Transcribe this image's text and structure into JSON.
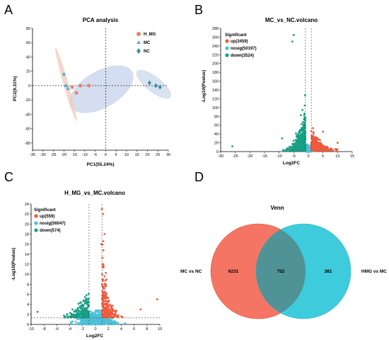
{
  "panels": {
    "A": {
      "letter": "A"
    },
    "B": {
      "letter": "B"
    },
    "C": {
      "letter": "C"
    },
    "D": {
      "letter": "D"
    }
  },
  "colors": {
    "up": "#f05a3c",
    "nosig": "#4ec0d9",
    "down": "#16a085",
    "hmg": "#e8836b",
    "mc": "#5aaedb",
    "nc": "#3f8f99",
    "hmg_ellipse": "#f2c9b7",
    "mc_ellipse": "#b9c6e6",
    "nc_ellipse": "#c7d6ea",
    "venn_left": "#f57564",
    "venn_right": "#3ecbdb",
    "venn_overlap": "#4f9397"
  },
  "chart_data": [
    {
      "type": "scatter",
      "title": "PCA analysis",
      "xlabel": "PC1(55.24%)",
      "ylabel": "PC2(9.31%)",
      "xlim": [
        -35,
        30
      ],
      "ylim": [
        -90,
        80
      ],
      "xticks": [
        -35,
        -30,
        -25,
        -20,
        -15,
        -10,
        -5,
        0,
        5,
        10,
        15,
        20,
        25,
        30
      ],
      "yticks": [
        -80,
        -60,
        -40,
        -20,
        0,
        20,
        40,
        60,
        80
      ],
      "legend_position": "top-right",
      "series": [
        {
          "name": "H_MG",
          "marker": "circle",
          "points": [
            [
              -16,
              -2
            ],
            [
              -12,
              0
            ],
            [
              -8,
              0
            ],
            [
              -14,
              -10
            ]
          ]
        },
        {
          "name": "MC",
          "marker": "triangle",
          "points": [
            [
              -20,
              16
            ],
            [
              -19,
              0
            ],
            [
              -18,
              -4
            ]
          ]
        },
        {
          "name": "NC",
          "marker": "diamond",
          "points": [
            [
              21,
              4
            ],
            [
              24,
              0
            ],
            [
              26,
              -2
            ]
          ]
        }
      ],
      "grid": false
    },
    {
      "type": "scatter",
      "title": "MC_vs_NC.volcano",
      "xlabel": "Log2FC",
      "ylabel": "-Log10(Pvalue)",
      "xlim": [
        -30,
        15
      ],
      "ylim": [
        0,
        280
      ],
      "xticks": [
        -30,
        -25,
        -20,
        -15,
        -10,
        -5,
        0,
        5,
        10,
        15
      ],
      "yticks": [
        0,
        20,
        40,
        60,
        80,
        100,
        120,
        140,
        160,
        180,
        200,
        220,
        240,
        260,
        280
      ],
      "legend_title": "Significant",
      "legend_position": "top-left",
      "series": [
        {
          "name": "up(3459)",
          "category": "up"
        },
        {
          "name": "nosig(50197)",
          "category": "nosig"
        },
        {
          "name": "down(3524)",
          "category": "down"
        }
      ],
      "thresholds": {
        "log2fc": [
          -1,
          1
        ]
      }
    },
    {
      "type": "scatter",
      "title": "H_MG_vs_MC.volcano",
      "xlabel": "Log2FC",
      "ylabel": "-Log10(Pvalue)",
      "xlim": [
        -10,
        10
      ],
      "ylim": [
        0,
        24
      ],
      "xticks": [
        -10,
        -8,
        -6,
        -4,
        -2,
        0,
        2,
        4,
        6,
        8,
        10
      ],
      "yticks": [
        0,
        2,
        4,
        6,
        8,
        10,
        12,
        14,
        16,
        18,
        20,
        22,
        24
      ],
      "legend_title": "Significant",
      "legend_position": "top-left",
      "series": [
        {
          "name": "up(559)",
          "category": "up"
        },
        {
          "name": "nosig(56047)",
          "category": "nosig"
        },
        {
          "name": "down(574)",
          "category": "down"
        }
      ],
      "thresholds": {
        "log2fc": [
          -1,
          1
        ],
        "neglog10p": 1.3
      }
    },
    {
      "type": "venn",
      "title": "Venn",
      "sets": [
        {
          "name": "MC vs NC",
          "only": "6231"
        },
        {
          "name": "HMG vs MC",
          "only": "381"
        }
      ],
      "overlap": "752"
    }
  ]
}
